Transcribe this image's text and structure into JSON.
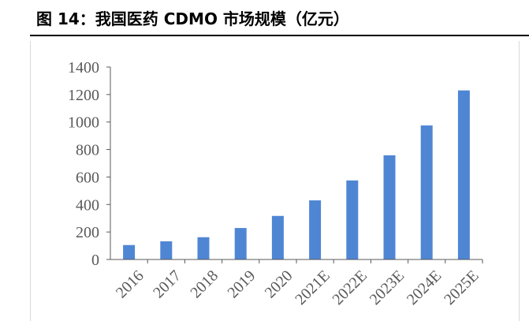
{
  "title": "图 14：我国医药 CDMO 市场规模（亿元）",
  "colors": {
    "bar": "#4f86d4",
    "axis": "#595959",
    "rule": "#000000",
    "frame": "#d9d9d9"
  },
  "chart_data": {
    "type": "bar",
    "title": "图 14：我国医药 CDMO 市场规模（亿元）",
    "xlabel": "",
    "ylabel": "",
    "categories": [
      "2016",
      "2017",
      "2018",
      "2019",
      "2020",
      "2021E",
      "2022E",
      "2023E",
      "2024E",
      "2025E"
    ],
    "values": [
      105,
      132,
      162,
      229,
      317,
      430,
      575,
      758,
      975,
      1230
    ],
    "ylim": [
      0,
      1400
    ],
    "yticks": [
      "0",
      "200",
      "400",
      "600",
      "800",
      "1000",
      "1200",
      "1400"
    ],
    "grid": false,
    "legend": "none"
  }
}
